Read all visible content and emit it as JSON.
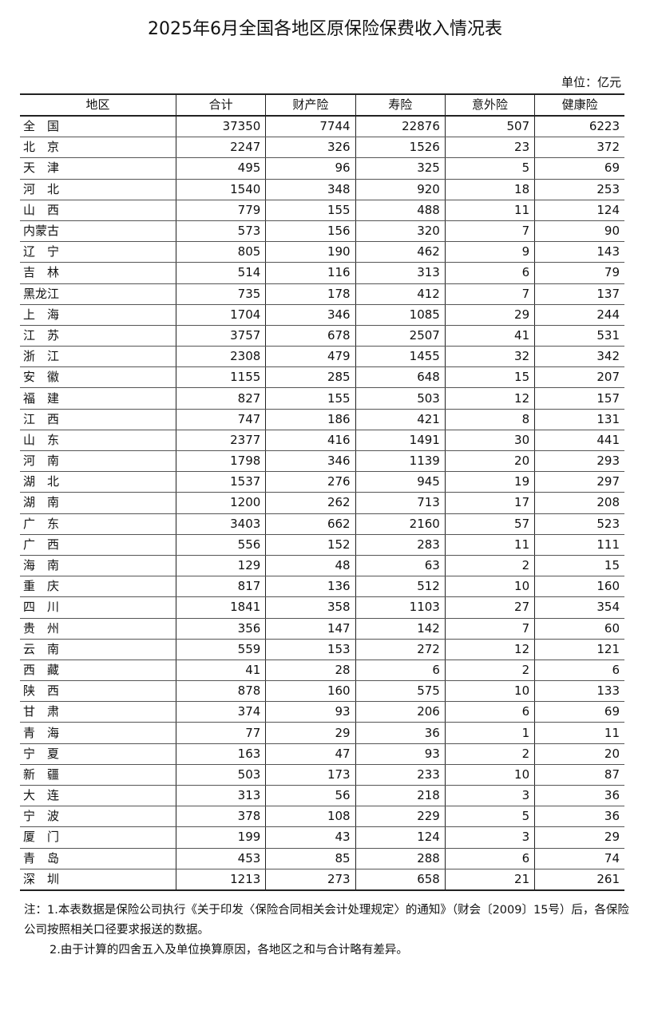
{
  "title": "2025年6月全国各地区原保险保费收入情况表",
  "unit": "单位：亿元",
  "columns": [
    "地区",
    "合计",
    "财产险",
    "寿险",
    "意外险",
    "健康险"
  ],
  "rows": [
    [
      "全　国",
      "37350",
      "7744",
      "22876",
      "507",
      "6223"
    ],
    [
      "北　京",
      "2247",
      "326",
      "1526",
      "23",
      "372"
    ],
    [
      "天　津",
      "495",
      "96",
      "325",
      "5",
      "69"
    ],
    [
      "河　北",
      "1540",
      "348",
      "920",
      "18",
      "253"
    ],
    [
      "山　西",
      "779",
      "155",
      "488",
      "11",
      "124"
    ],
    [
      "内蒙古",
      "573",
      "156",
      "320",
      "7",
      "90"
    ],
    [
      "辽　宁",
      "805",
      "190",
      "462",
      "9",
      "143"
    ],
    [
      "吉　林",
      "514",
      "116",
      "313",
      "6",
      "79"
    ],
    [
      "黑龙江",
      "735",
      "178",
      "412",
      "7",
      "137"
    ],
    [
      "上　海",
      "1704",
      "346",
      "1085",
      "29",
      "244"
    ],
    [
      "江　苏",
      "3757",
      "678",
      "2507",
      "41",
      "531"
    ],
    [
      "浙　江",
      "2308",
      "479",
      "1455",
      "32",
      "342"
    ],
    [
      "安　徽",
      "1155",
      "285",
      "648",
      "15",
      "207"
    ],
    [
      "福　建",
      "827",
      "155",
      "503",
      "12",
      "157"
    ],
    [
      "江　西",
      "747",
      "186",
      "421",
      "8",
      "131"
    ],
    [
      "山　东",
      "2377",
      "416",
      "1491",
      "30",
      "441"
    ],
    [
      "河　南",
      "1798",
      "346",
      "1139",
      "20",
      "293"
    ],
    [
      "湖　北",
      "1537",
      "276",
      "945",
      "19",
      "297"
    ],
    [
      "湖　南",
      "1200",
      "262",
      "713",
      "17",
      "208"
    ],
    [
      "广　东",
      "3403",
      "662",
      "2160",
      "57",
      "523"
    ],
    [
      "广　西",
      "556",
      "152",
      "283",
      "11",
      "111"
    ],
    [
      "海　南",
      "129",
      "48",
      "63",
      "2",
      "15"
    ],
    [
      "重　庆",
      "817",
      "136",
      "512",
      "10",
      "160"
    ],
    [
      "四　川",
      "1841",
      "358",
      "1103",
      "27",
      "354"
    ],
    [
      "贵　州",
      "356",
      "147",
      "142",
      "7",
      "60"
    ],
    [
      "云　南",
      "559",
      "153",
      "272",
      "12",
      "121"
    ],
    [
      "西　藏",
      "41",
      "28",
      "6",
      "2",
      "6"
    ],
    [
      "陕　西",
      "878",
      "160",
      "575",
      "10",
      "133"
    ],
    [
      "甘　肃",
      "374",
      "93",
      "206",
      "6",
      "69"
    ],
    [
      "青　海",
      "77",
      "29",
      "36",
      "1",
      "11"
    ],
    [
      "宁　夏",
      "163",
      "47",
      "93",
      "2",
      "20"
    ],
    [
      "新　疆",
      "503",
      "173",
      "233",
      "10",
      "87"
    ],
    [
      "大　连",
      "313",
      "56",
      "218",
      "3",
      "36"
    ],
    [
      "宁　波",
      "378",
      "108",
      "229",
      "5",
      "36"
    ],
    [
      "厦　门",
      "199",
      "43",
      "124",
      "3",
      "29"
    ],
    [
      "青　岛",
      "453",
      "85",
      "288",
      "6",
      "74"
    ],
    [
      "深　圳",
      "1213",
      "273",
      "658",
      "21",
      "261"
    ]
  ],
  "notes": {
    "note1": "注：1.本表数据是保险公司执行《关于印发〈保险合同相关会计处理规定〉的通知》（财会〔2009〕15号）后，各保险公司按照相关口径要求报送的数据。",
    "note2": "2.由于计算的四舍五入及单位换算原因，各地区之和与合计略有差异。"
  }
}
